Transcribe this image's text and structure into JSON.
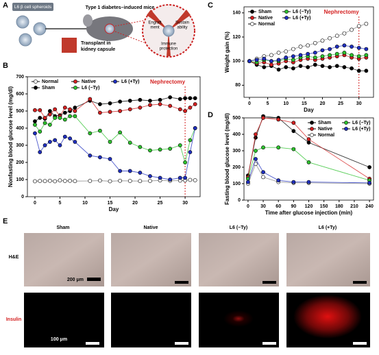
{
  "panels": {
    "labels": [
      "A",
      "B",
      "C",
      "D",
      "E"
    ],
    "a": {
      "spheroids": "L6 β cell spheroids",
      "mice": "Type 1 diabetes–induced mice",
      "transplant": [
        "Transplant in",
        "kidney capsule"
      ],
      "engraft": [
        "Engraft",
        "ment"
      ],
      "sustain": [
        "Sustain",
        "ability"
      ],
      "immune": [
        "Immune",
        "protection"
      ]
    },
    "e": {
      "columns": [
        "Sham",
        "Native",
        "L6 (−Ty)",
        "L6 (+Ty)"
      ],
      "rows": [
        "H&E",
        "Insulin"
      ],
      "scales": [
        "200 μm",
        "100 μm"
      ]
    }
  },
  "chart_data": [
    {
      "type": "line",
      "xlabel": "Day",
      "ylabel": "Nonfasting blood glucose level (mg/dl)",
      "x": [
        0,
        1,
        2,
        3,
        4,
        5,
        6,
        7,
        8,
        11,
        13,
        15,
        17,
        19,
        21,
        23,
        25,
        27,
        29,
        30,
        31,
        32
      ],
      "xlim": [
        -1.5,
        33
      ],
      "xticks": [
        0,
        5,
        10,
        15,
        20,
        25,
        30
      ],
      "ylim": [
        0,
        700
      ],
      "yticks": [
        0,
        100,
        200,
        300,
        400,
        500,
        600,
        700
      ],
      "legend": "upper left",
      "annotation": {
        "text": "Nephrectomy",
        "x": 30
      },
      "series": [
        {
          "name": "Normal",
          "color": "#ffffff",
          "values": [
            90,
            92,
            91,
            93,
            90,
            95,
            92,
            93,
            91,
            92,
            94,
            90,
            93,
            92,
            91,
            92,
            95,
            93,
            94,
            95,
            98,
            96
          ]
        },
        {
          "name": "Sham",
          "color": "#000000",
          "values": [
            440,
            460,
            455,
            500,
            470,
            475,
            490,
            500,
            520,
            560,
            540,
            545,
            555,
            560,
            565,
            560,
            565,
            580,
            570,
            575,
            575,
            575
          ]
        },
        {
          "name": "Native",
          "color": "#d42020",
          "values": [
            505,
            505,
            460,
            480,
            510,
            470,
            520,
            510,
            500,
            570,
            490,
            495,
            500,
            510,
            520,
            535,
            540,
            530,
            510,
            500,
            520,
            540
          ]
        },
        {
          "name": "L6 (−Ty)",
          "color": "#2ec22e",
          "values": [
            420,
            380,
            430,
            420,
            460,
            460,
            450,
            470,
            470,
            370,
            385,
            320,
            375,
            315,
            290,
            270,
            275,
            280,
            300,
            200,
            330,
            400
          ]
        },
        {
          "name": "L6 (+Ty)",
          "color": "#1f2fc0",
          "values": [
            370,
            260,
            300,
            320,
            330,
            300,
            350,
            340,
            320,
            240,
            230,
            220,
            150,
            150,
            140,
            120,
            110,
            100,
            110,
            110,
            260,
            400
          ]
        }
      ]
    },
    {
      "type": "line",
      "xlabel": "Day",
      "ylabel": "Weight gain (%)",
      "x": [
        0,
        2,
        4,
        6,
        8,
        10,
        12,
        14,
        16,
        18,
        20,
        22,
        24,
        26,
        28,
        30,
        32
      ],
      "xlim": [
        -1.5,
        34
      ],
      "xticks": [
        0,
        5,
        10,
        15,
        20,
        25,
        30
      ],
      "ylim": [
        70,
        145
      ],
      "yticks": [
        80,
        100,
        120,
        140
      ],
      "legend": "upper left",
      "annotation": {
        "text": "Nephrectomy",
        "x": 30
      },
      "series": [
        {
          "name": "Sham",
          "color": "#000000",
          "values": [
            100,
            97,
            95,
            96,
            93,
            95,
            94,
            96,
            95,
            97,
            96,
            95,
            96,
            95,
            94,
            92,
            92
          ]
        },
        {
          "name": "Native",
          "color": "#d42020",
          "values": [
            100,
            98,
            99,
            97,
            98,
            100,
            99,
            101,
            102,
            101,
            102,
            103,
            104,
            105,
            103,
            102,
            103
          ]
        },
        {
          "name": "Normal",
          "color": "#ffffff",
          "values": [
            100,
            102,
            104,
            105,
            107,
            108,
            110,
            112,
            113,
            115,
            117,
            119,
            121,
            123,
            126,
            129,
            131
          ]
        },
        {
          "name": "L6 (−Ty)",
          "color": "#2ec22e",
          "values": [
            100,
            99,
            101,
            100,
            100,
            102,
            101,
            103,
            104,
            103,
            104,
            105,
            106,
            107,
            105,
            104,
            105
          ]
        },
        {
          "name": "L6 (+Ty)",
          "color": "#1f2fc0",
          "values": [
            100,
            101,
            102,
            100,
            101,
            103,
            104,
            105,
            106,
            107,
            109,
            110,
            112,
            113,
            112,
            111,
            110
          ]
        }
      ]
    },
    {
      "type": "line",
      "xlabel": "Time after glucose injection (min)",
      "ylabel": "Fasting blood glucose level (mg/dl)",
      "x": [
        0,
        15,
        30,
        60,
        90,
        120,
        240
      ],
      "xlim": [
        -8,
        248
      ],
      "xticks": [
        0,
        30,
        60,
        90,
        120,
        150,
        180,
        210,
        240
      ],
      "ylim": [
        0,
        500
      ],
      "yticks": [
        0,
        100,
        200,
        300,
        400,
        500
      ],
      "legend": "upper right",
      "series": [
        {
          "name": "Sham",
          "color": "#000000",
          "values": [
            150,
            380,
            510,
            500,
            420,
            350,
            200
          ]
        },
        {
          "name": "Native",
          "color": "#d42020",
          "values": [
            140,
            400,
            500,
            490,
            470,
            370,
            130
          ]
        },
        {
          "name": "Normal",
          "color": "#ffffff",
          "values": [
            100,
            220,
            140,
            110,
            105,
            105,
            100
          ]
        },
        {
          "name": "L6 (−Ty)",
          "color": "#2ec22e",
          "values": [
            130,
            300,
            320,
            320,
            310,
            230,
            120
          ]
        },
        {
          "name": "L6 (+Ty)",
          "color": "#1f2fc0",
          "values": [
            110,
            250,
            170,
            120,
            110,
            110,
            105
          ]
        }
      ]
    }
  ]
}
